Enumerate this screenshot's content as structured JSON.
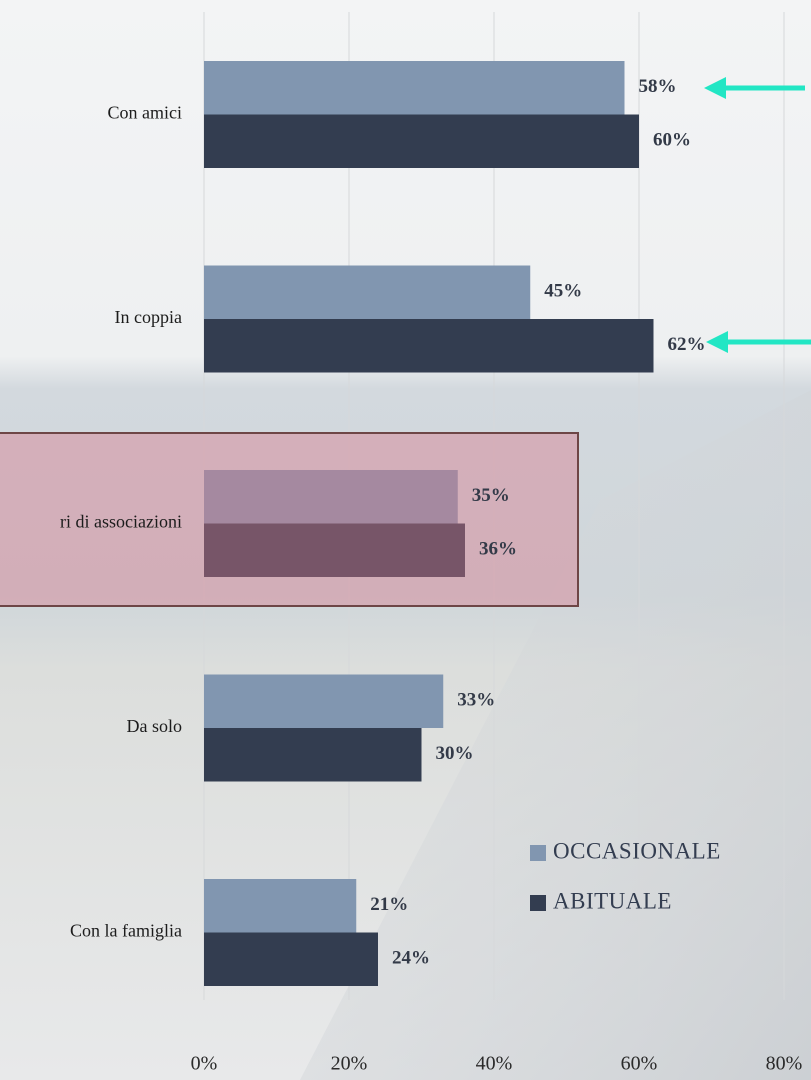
{
  "chart_data": {
    "type": "barh",
    "categories": [
      "Con amici",
      "In coppia",
      "ri di associazioni",
      "Da solo",
      "Con la famiglia"
    ],
    "series": [
      {
        "name": "OCCASIONALE",
        "color": "#8196b0",
        "values": [
          58,
          45,
          35,
          33,
          21
        ],
        "value_labels": [
          "58%",
          "45%",
          "35%",
          "33%",
          "21%"
        ]
      },
      {
        "name": "ABITUALE",
        "color": "#333d50",
        "values": [
          60,
          62,
          36,
          30,
          24
        ],
        "value_labels": [
          "60%",
          "62%",
          "36%",
          "30%",
          "24%"
        ]
      }
    ],
    "xlim": [
      0,
      80
    ],
    "xticks": [
      {
        "value": 0,
        "label": "0%"
      },
      {
        "value": 20,
        "label": "20%"
      },
      {
        "value": 40,
        "label": "40%"
      },
      {
        "value": 60,
        "label": "60%"
      },
      {
        "value": 80,
        "label": "80%"
      }
    ],
    "grid": true
  }
}
